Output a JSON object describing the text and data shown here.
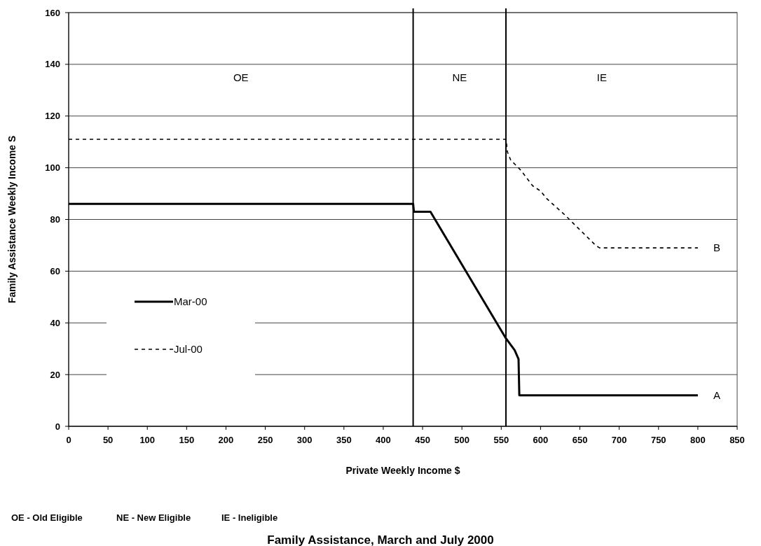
{
  "chart_data": {
    "type": "line",
    "title": "Family Assistance, March and July 2000",
    "xlabel": "Private Weekly Income $",
    "ylabel": "Family Assistance Weekly Income S",
    "xlim": [
      0,
      850
    ],
    "xticks": [
      0,
      50,
      100,
      150,
      200,
      250,
      300,
      350,
      400,
      450,
      500,
      550,
      600,
      650,
      700,
      750,
      800,
      850
    ],
    "ylim": [
      0,
      160
    ],
    "yticks": [
      0,
      20,
      40,
      60,
      80,
      100,
      120,
      140,
      160
    ],
    "grid": "y",
    "legend": "left",
    "marker": "none",
    "series": [
      {
        "name": "Mar-00",
        "color": "#000000",
        "line_style": "solid",
        "x": [
          0,
          438,
          439,
          460,
          556,
          567,
          572,
          573,
          800
        ],
        "values": [
          86,
          86,
          83,
          83,
          34,
          29.5,
          26,
          12,
          12
        ]
      },
      {
        "name": "Jul-00",
        "color": "#000000",
        "line_style": "dashed",
        "x": [
          0,
          556,
          558,
          562,
          575,
          590,
          600,
          608,
          630,
          650,
          670,
          675,
          800
        ],
        "values": [
          111,
          111,
          106,
          103,
          99,
          93,
          91,
          88,
          82,
          76,
          70,
          69,
          69
        ]
      }
    ],
    "ref_lines": [
      {
        "axis": "x",
        "value": 438,
        "color": "#000000"
      },
      {
        "axis": "x",
        "value": 556,
        "color": "#000000"
      }
    ],
    "annotations": [
      "OE",
      "NE",
      "IE",
      {
        "text": "A",
        "x": 800,
        "y": 12
      },
      {
        "text": "B",
        "x": 800,
        "y": 69
      },
      "OE - Old Eligible",
      "NE - New Eligible",
      "IE - Ineligible"
    ]
  }
}
